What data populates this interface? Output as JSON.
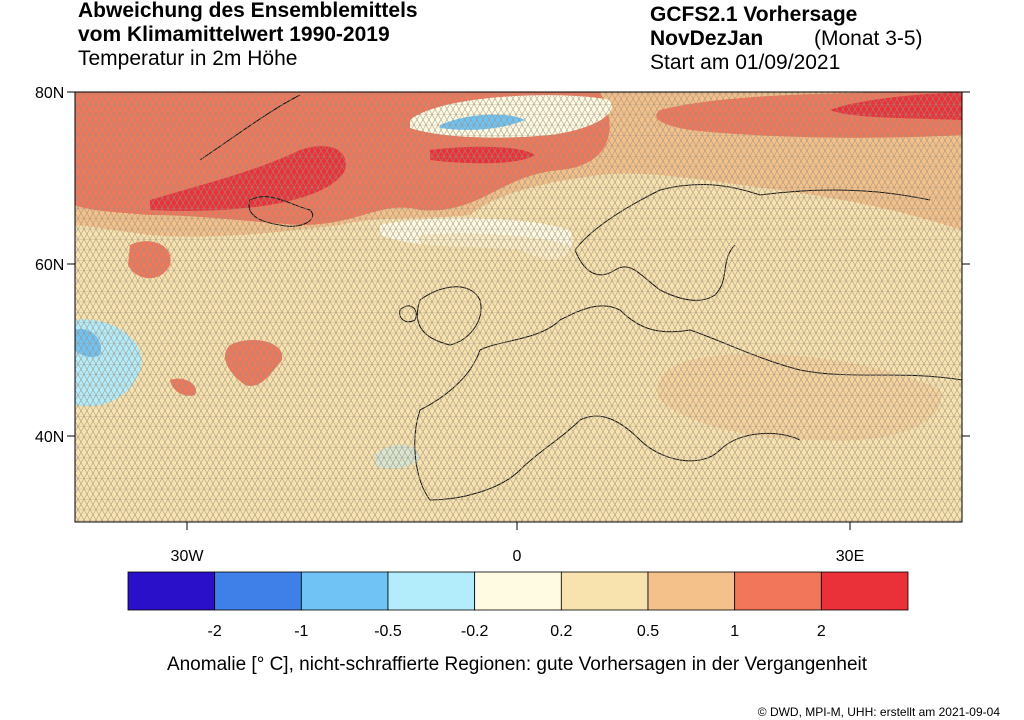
{
  "header": {
    "left": {
      "title_lines": [
        "Abweichung des Ensemblemittels",
        "vom Klimamittelwert 1990-2019"
      ],
      "subtitle": "Temperatur in 2m Höhe"
    },
    "right": {
      "model": "GCFS2.1 Vorhersage",
      "season": "NovDezJan",
      "months": "(Monat 3-5)",
      "start": "Start am 01/09/2021"
    }
  },
  "map": {
    "lat_labels": [
      "80N",
      "60N",
      "40N"
    ],
    "lon_labels": [
      "30W",
      "0",
      "30E"
    ]
  },
  "legend": {
    "colors": [
      "#2a10c8",
      "#3f7fe8",
      "#6fc4f5",
      "#b3ecfb",
      "#fffbe3",
      "#f8e2ae",
      "#f5c18a",
      "#f1765a",
      "#ea3038"
    ],
    "labels": [
      -2,
      -1,
      -0.5,
      -0.2,
      0.2,
      0.5,
      1,
      2
    ]
  },
  "caption": "Anomalie [° C], nicht-schraffierte Regionen: gute Vorhersagen in der Vergangenheit",
  "footer": "© DWD, MPI-M, UHH: erstellt am 2021-09-04"
}
